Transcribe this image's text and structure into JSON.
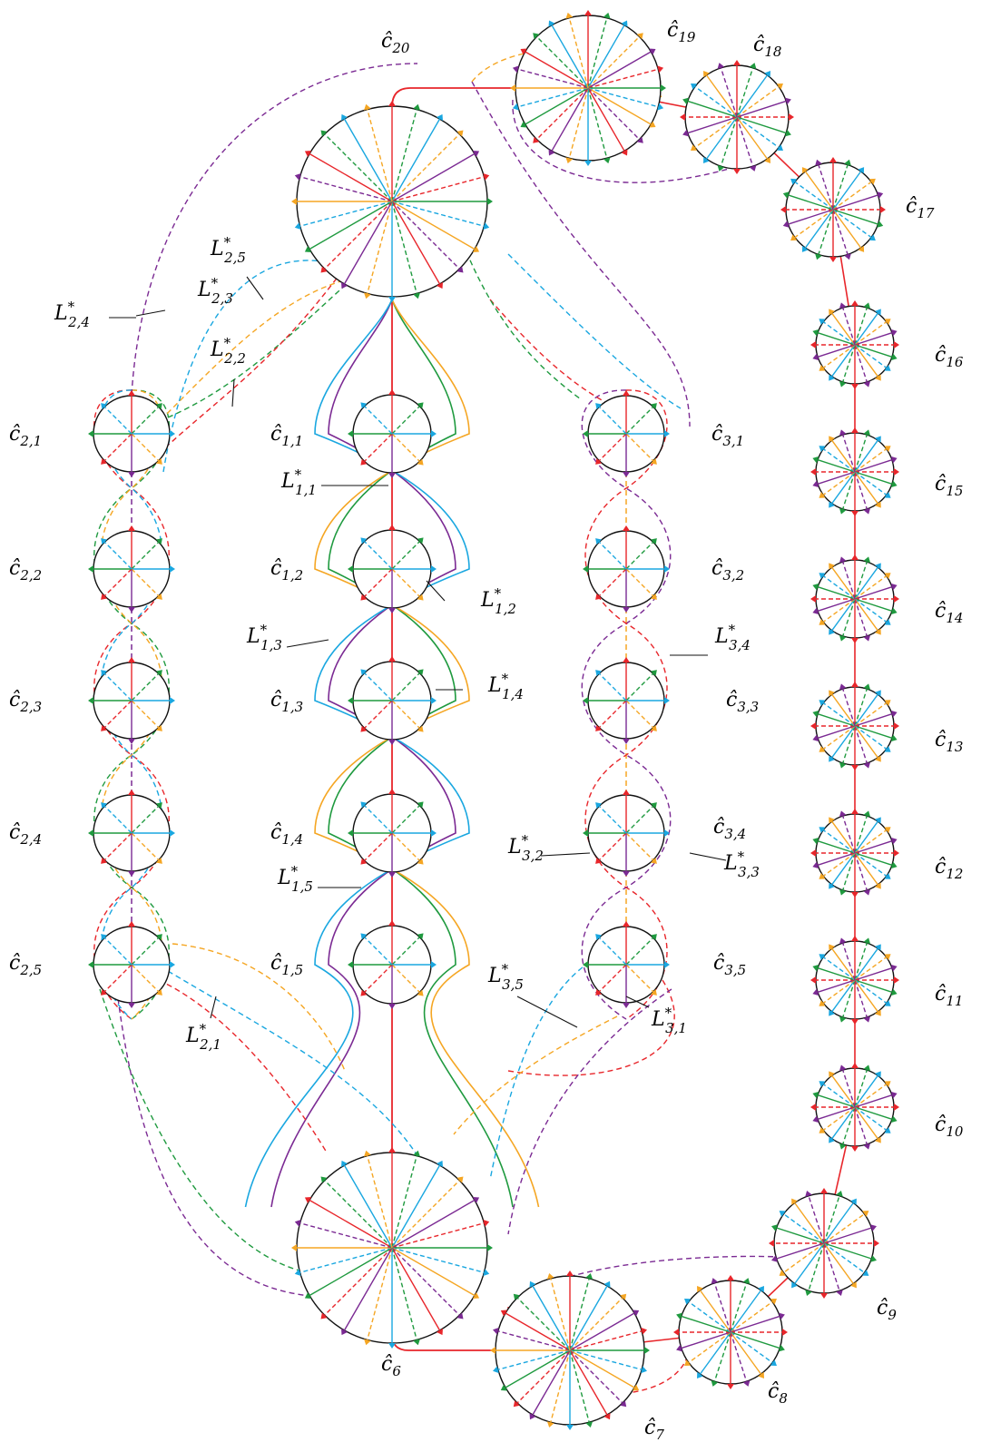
{
  "colors": {
    "red": "#e8262b",
    "green": "#1f9a3f",
    "blue": "#1aa7e0",
    "orange": "#f5a623",
    "purple": "#7b2a93",
    "black": "#111111"
  },
  "large_circles": [
    {
      "id": "c20",
      "label": "ĉ",
      "sub": "20"
    },
    {
      "id": "c6",
      "label": "ĉ",
      "sub": "6"
    }
  ],
  "ring_circles": [
    {
      "id": "c19",
      "label": "ĉ",
      "sub": "19"
    },
    {
      "id": "c18",
      "label": "ĉ",
      "sub": "18"
    },
    {
      "id": "c17",
      "label": "ĉ",
      "sub": "17"
    },
    {
      "id": "c16",
      "label": "ĉ",
      "sub": "16"
    },
    {
      "id": "c15",
      "label": "ĉ",
      "sub": "15"
    },
    {
      "id": "c14",
      "label": "ĉ",
      "sub": "14"
    },
    {
      "id": "c13",
      "label": "ĉ",
      "sub": "13"
    },
    {
      "id": "c12",
      "label": "ĉ",
      "sub": "12"
    },
    {
      "id": "c11",
      "label": "ĉ",
      "sub": "11"
    },
    {
      "id": "c10",
      "label": "ĉ",
      "sub": "10"
    },
    {
      "id": "c9",
      "label": "ĉ",
      "sub": "9"
    },
    {
      "id": "c8",
      "label": "ĉ",
      "sub": "8"
    },
    {
      "id": "c7",
      "label": "ĉ",
      "sub": "7"
    }
  ],
  "column_circles": [
    {
      "id": "c11_",
      "label": "ĉ",
      "sub": "1,1"
    },
    {
      "id": "c12_",
      "label": "ĉ",
      "sub": "1,2"
    },
    {
      "id": "c13_",
      "label": "ĉ",
      "sub": "1,3"
    },
    {
      "id": "c14_",
      "label": "ĉ",
      "sub": "1,4"
    },
    {
      "id": "c15_",
      "label": "ĉ",
      "sub": "1,5"
    },
    {
      "id": "c21_",
      "label": "ĉ",
      "sub": "2,1"
    },
    {
      "id": "c22_",
      "label": "ĉ",
      "sub": "2,2"
    },
    {
      "id": "c23_",
      "label": "ĉ",
      "sub": "2,3"
    },
    {
      "id": "c24_",
      "label": "ĉ",
      "sub": "2,4"
    },
    {
      "id": "c25_",
      "label": "ĉ",
      "sub": "2,5"
    },
    {
      "id": "c31_",
      "label": "ĉ",
      "sub": "3,1"
    },
    {
      "id": "c32_",
      "label": "ĉ",
      "sub": "3,2"
    },
    {
      "id": "c33_",
      "label": "ĉ",
      "sub": "3,3"
    },
    {
      "id": "c34_",
      "label": "ĉ",
      "sub": "3,4"
    },
    {
      "id": "c35_",
      "label": "ĉ",
      "sub": "3,5"
    }
  ],
  "loop_labels": [
    {
      "id": "L11",
      "label": "L",
      "sup": "*",
      "sub": "1,1"
    },
    {
      "id": "L12",
      "label": "L",
      "sup": "*",
      "sub": "1,2"
    },
    {
      "id": "L13",
      "label": "L",
      "sup": "*",
      "sub": "1,3"
    },
    {
      "id": "L14",
      "label": "L",
      "sup": "*",
      "sub": "1,4"
    },
    {
      "id": "L15",
      "label": "L",
      "sup": "*",
      "sub": "1,5"
    },
    {
      "id": "L21",
      "label": "L",
      "sup": "*",
      "sub": "2,1"
    },
    {
      "id": "L22",
      "label": "L",
      "sup": "*",
      "sub": "2,2"
    },
    {
      "id": "L23",
      "label": "L",
      "sup": "*",
      "sub": "2,3"
    },
    {
      "id": "L24",
      "label": "L",
      "sup": "*",
      "sub": "2,4"
    },
    {
      "id": "L25",
      "label": "L",
      "sup": "*",
      "sub": "2,5"
    },
    {
      "id": "L31",
      "label": "L",
      "sup": "*",
      "sub": "3,1"
    },
    {
      "id": "L32",
      "label": "L",
      "sup": "*",
      "sub": "3,2"
    },
    {
      "id": "L33",
      "label": "L",
      "sup": "*",
      "sub": "3,3"
    },
    {
      "id": "L34",
      "label": "L",
      "sup": "*",
      "sub": "3,4"
    },
    {
      "id": "L35",
      "label": "L",
      "sup": "*",
      "sub": "3,5"
    }
  ]
}
